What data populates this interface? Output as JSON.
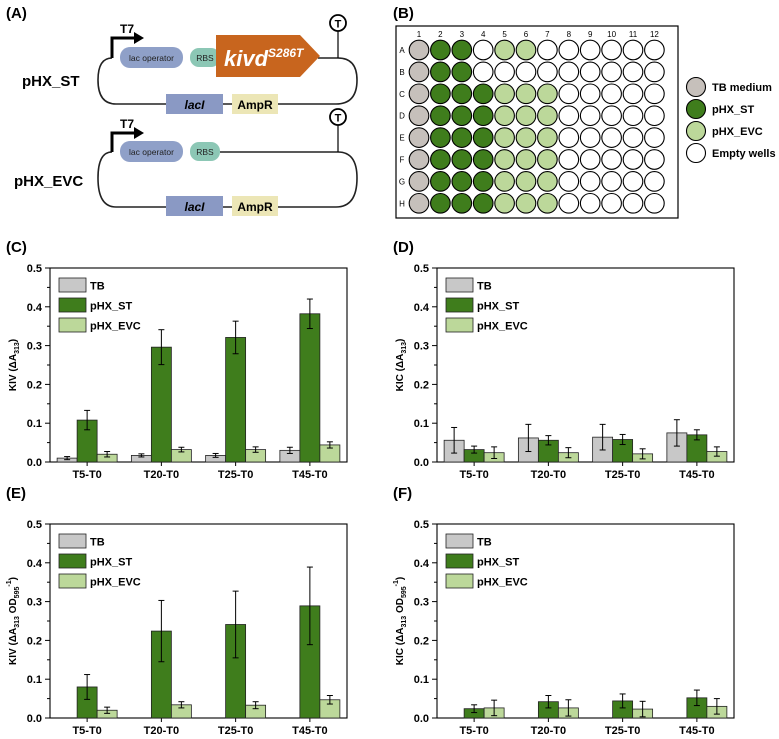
{
  "colors": {
    "tb": "#c8c8c8",
    "st": "#3f7d1c",
    "evc": "#bcd89a",
    "empty": "#ffffff",
    "kivd": "#c8651e",
    "lac": "#8fa0c8",
    "rbs": "#8cc7b5",
    "laci": "#8a99c4",
    "ampr": "#ece6b6",
    "tb_well": "#c6c0bb"
  },
  "panel_labels": {
    "a": "(A)",
    "b": "(B)",
    "c": "(C)",
    "d": "(D)",
    "e": "(E)",
    "f": "(F)"
  },
  "plasmids": [
    {
      "name": "pHX_ST",
      "promoter": "T7",
      "operator": "lac operator",
      "rbs": "RBS",
      "gene": "kivd",
      "gene_sup": "S286T",
      "terminator": "T",
      "laci": "lacI",
      "ampr": "AmpR"
    },
    {
      "name": "pHX_EVC",
      "promoter": "T7",
      "operator": "lac operator",
      "rbs": "RBS",
      "terminator": "T",
      "laci": "lacI",
      "ampr": "AmpR"
    }
  ],
  "plate": {
    "columns": [
      "1",
      "2",
      "3",
      "4",
      "5",
      "6",
      "7",
      "8",
      "9",
      "10",
      "11",
      "12"
    ],
    "rows": [
      "A",
      "B",
      "C",
      "D",
      "E",
      "F",
      "G",
      "H"
    ],
    "layout": [
      "TSSEVVEEEEEE",
      "TSSEEEEEEEEE",
      "TSSSVVVEEEEE",
      "TSSSVVVEEEEE",
      "TSSSVVVEEEEE",
      "TSSSVVVEEEEE",
      "TSSSVVVEEEEE",
      "TSSSVVVEEEEE"
    ],
    "legend": [
      "TB medium",
      "pHX_ST",
      "pHX_EVC",
      "Empty wells"
    ]
  },
  "chart_data": [
    {
      "id": "C",
      "type": "bar",
      "categories": [
        "T5-T0",
        "T20-T0",
        "T25-T0",
        "T45-T0"
      ],
      "ylabel_main": "KIV (ΔA",
      "ylabel_sub": "313",
      "ylabel_tail": ")",
      "ylim": [
        0,
        0.5
      ],
      "yticks": [
        "0.0",
        "0.1",
        "0.2",
        "0.3",
        "0.4",
        "0.5"
      ],
      "legend": [
        "TB",
        "pHX_ST",
        "pHX_EVC"
      ],
      "series": [
        {
          "name": "TB",
          "values": [
            0.01,
            0.017,
            0.017,
            0.03
          ],
          "errors": [
            0.004,
            0.004,
            0.005,
            0.008
          ]
        },
        {
          "name": "pHX_ST",
          "values": [
            0.108,
            0.296,
            0.321,
            0.382
          ],
          "errors": [
            0.025,
            0.045,
            0.042,
            0.038
          ]
        },
        {
          "name": "pHX_EVC",
          "values": [
            0.02,
            0.032,
            0.032,
            0.044
          ],
          "errors": [
            0.007,
            0.006,
            0.007,
            0.008
          ]
        }
      ]
    },
    {
      "id": "D",
      "type": "bar",
      "categories": [
        "T5-T0",
        "T20-T0",
        "T25-T0",
        "T45-T0"
      ],
      "ylabel_main": "KIC (ΔA",
      "ylabel_sub": "313",
      "ylabel_tail": ")",
      "ylim": [
        0,
        0.5
      ],
      "yticks": [
        "0.0",
        "0.1",
        "0.2",
        "0.3",
        "0.4",
        "0.5"
      ],
      "legend": [
        "TB",
        "pHX_ST",
        "pHX_EVC"
      ],
      "series": [
        {
          "name": "TB",
          "values": [
            0.056,
            0.062,
            0.064,
            0.075
          ],
          "errors": [
            0.033,
            0.035,
            0.033,
            0.034
          ]
        },
        {
          "name": "pHX_ST",
          "values": [
            0.032,
            0.056,
            0.058,
            0.07
          ],
          "errors": [
            0.009,
            0.012,
            0.013,
            0.013
          ]
        },
        {
          "name": "pHX_EVC",
          "values": [
            0.024,
            0.024,
            0.021,
            0.027
          ],
          "errors": [
            0.015,
            0.013,
            0.013,
            0.012
          ]
        }
      ]
    },
    {
      "id": "E",
      "type": "bar",
      "categories": [
        "T5-T0",
        "T20-T0",
        "T25-T0",
        "T45-T0"
      ],
      "ylabel_main": "KIV (ΔA",
      "ylabel_sub": "313",
      "ylabel_tail": " OD",
      "ylabel_sub2": "595",
      "ylabel_sup": "-1",
      "ylabel_end": ")",
      "ylim": [
        0,
        0.5
      ],
      "yticks": [
        "0.0",
        "0.1",
        "0.2",
        "0.3",
        "0.4",
        "0.5"
      ],
      "legend": [
        "TB",
        "pHX_ST",
        "pHX_EVC"
      ],
      "series": [
        {
          "name": "TB",
          "values": [
            0,
            0,
            0,
            0
          ],
          "errors": [
            0,
            0,
            0,
            0
          ]
        },
        {
          "name": "pHX_ST",
          "values": [
            0.08,
            0.224,
            0.241,
            0.289
          ],
          "errors": [
            0.032,
            0.079,
            0.086,
            0.1
          ]
        },
        {
          "name": "pHX_EVC",
          "values": [
            0.02,
            0.034,
            0.033,
            0.047
          ],
          "errors": [
            0.008,
            0.008,
            0.009,
            0.011
          ]
        }
      ]
    },
    {
      "id": "F",
      "type": "bar",
      "categories": [
        "T5-T0",
        "T20-T0",
        "T25-T0",
        "T45-T0"
      ],
      "ylabel_main": "KIC (ΔA",
      "ylabel_sub": "313",
      "ylabel_tail": " OD",
      "ylabel_sub2": "595",
      "ylabel_sup": "-1",
      "ylabel_end": ")",
      "ylim": [
        0,
        0.5
      ],
      "yticks": [
        "0.0",
        "0.1",
        "0.2",
        "0.3",
        "0.4",
        "0.5"
      ],
      "legend": [
        "TB",
        "pHX_ST",
        "pHX_EVC"
      ],
      "series": [
        {
          "name": "TB",
          "values": [
            0,
            0,
            0,
            0
          ],
          "errors": [
            0,
            0,
            0,
            0
          ]
        },
        {
          "name": "pHX_ST",
          "values": [
            0.024,
            0.042,
            0.044,
            0.052
          ],
          "errors": [
            0.01,
            0.016,
            0.018,
            0.02
          ]
        },
        {
          "name": "pHX_EVC",
          "values": [
            0.026,
            0.026,
            0.023,
            0.03
          ],
          "errors": [
            0.02,
            0.021,
            0.02,
            0.02
          ]
        }
      ]
    }
  ]
}
